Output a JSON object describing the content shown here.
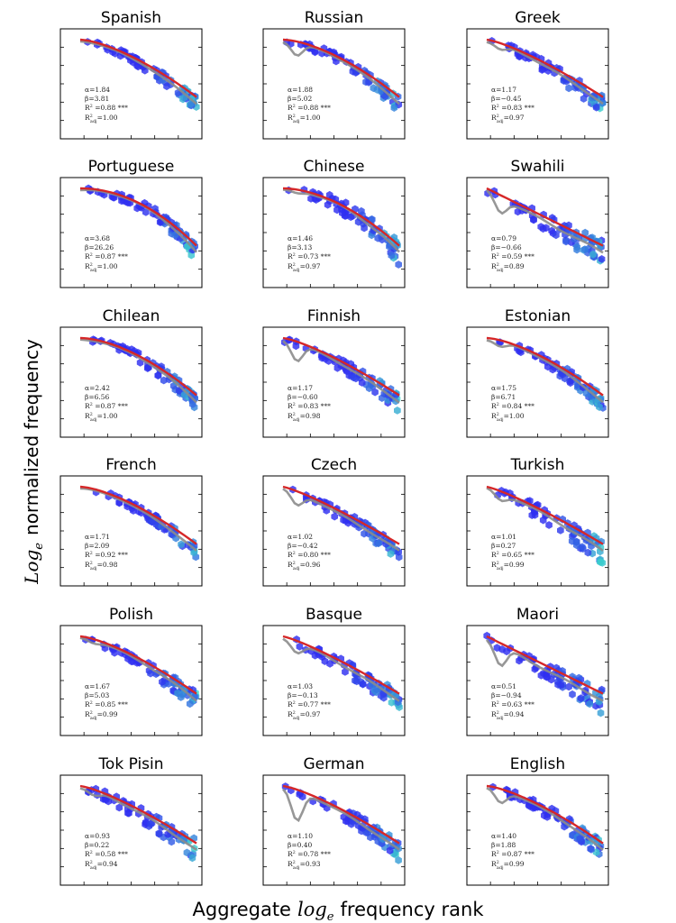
{
  "figure": {
    "ylabel_prefix": "Log",
    "ylabel_sub": "e",
    "ylabel_suffix": "normalized frequency",
    "xlabel_prefix": "Aggregate",
    "xlabel_math": "log",
    "xlabel_sub": "e",
    "xlabel_suffix": "frequency rank"
  },
  "stat_labels": {
    "alpha": "α",
    "beta": "β",
    "r2": "R",
    "r2adj": "R",
    "adj_sub": "adj",
    "sig": "***"
  },
  "colors": {
    "fit": "#d62728",
    "lowess": "#8c8c8c",
    "hex_low": "#2f2ff0",
    "hex_high": "#3de3c8"
  },
  "chart_data": [
    {
      "type": "scatter",
      "title": "Spanish",
      "alpha": "1.84",
      "beta": "3.81",
      "r2": "0.88",
      "r2adj": "1.00",
      "shape": 0.5,
      "dip": 0.0,
      "spread": 0.1
    },
    {
      "type": "scatter",
      "title": "Russian",
      "alpha": "1.88",
      "beta": "5.02",
      "r2": "0.88",
      "r2adj": "1.00",
      "shape": 0.6,
      "dip": 0.5,
      "spread": 0.15
    },
    {
      "type": "scatter",
      "title": "Greek",
      "alpha": "1.17",
      "beta": "−0.45",
      "r2": "0.83",
      "r2adj": "0.97",
      "shape": 0.3,
      "dip": 0.2,
      "spread": 0.2
    },
    {
      "type": "scatter",
      "title": "Portuguese",
      "alpha": "3.68",
      "beta": "26.26",
      "r2": "0.87",
      "r2adj": "1.00",
      "shape": 1.0,
      "dip": 0.0,
      "spread": 0.15
    },
    {
      "type": "scatter",
      "title": "Chinese",
      "alpha": "1.46",
      "beta": "3.13",
      "r2": "0.73",
      "r2adj": "0.97",
      "shape": 0.8,
      "dip": 0.1,
      "spread": 0.3
    },
    {
      "type": "scatter",
      "title": "Swahili",
      "alpha": "0.79",
      "beta": "−0.66",
      "r2": "0.59",
      "r2adj": "0.89",
      "shape": 0.0,
      "dip": 0.6,
      "spread": 0.35
    },
    {
      "type": "scatter",
      "title": "Chilean",
      "alpha": "2.42",
      "beta": "6.56",
      "r2": "0.87",
      "r2adj": "1.00",
      "shape": 0.7,
      "dip": 0.0,
      "spread": 0.15
    },
    {
      "type": "scatter",
      "title": "Finnish",
      "alpha": "1.17",
      "beta": "−0.60",
      "r2": "0.83",
      "r2adj": "0.98",
      "shape": 0.3,
      "dip": 0.7,
      "spread": 0.2
    },
    {
      "type": "scatter",
      "title": "Estonian",
      "alpha": "1.75",
      "beta": "6.71",
      "r2": "0.84",
      "r2adj": "1.00",
      "shape": 0.5,
      "dip": 0.2,
      "spread": 0.15
    },
    {
      "type": "scatter",
      "title": "French",
      "alpha": "1.71",
      "beta": "2.09",
      "r2": "0.92",
      "r2adj": "0.98",
      "shape": 0.5,
      "dip": 0.0,
      "spread": 0.1
    },
    {
      "type": "scatter",
      "title": "Czech",
      "alpha": "1.02",
      "beta": "−0.42",
      "r2": "0.80",
      "r2adj": "0.96",
      "shape": 0.2,
      "dip": 0.5,
      "spread": 0.2
    },
    {
      "type": "scatter",
      "title": "Turkish",
      "alpha": "1.01",
      "beta": "0.27",
      "r2": "0.65",
      "r2adj": "0.99",
      "shape": 0.2,
      "dip": 0.3,
      "spread": 0.35
    },
    {
      "type": "scatter",
      "title": "Polish",
      "alpha": "1.67",
      "beta": "5.03",
      "r2": "0.85",
      "r2adj": "0.99",
      "shape": 0.4,
      "dip": 0.1,
      "spread": 0.2
    },
    {
      "type": "scatter",
      "title": "Basque",
      "alpha": "1.03",
      "beta": "−0.13",
      "r2": "0.77",
      "r2adj": "0.97",
      "shape": 0.2,
      "dip": 0.4,
      "spread": 0.25
    },
    {
      "type": "scatter",
      "title": "Maori",
      "alpha": "0.51",
      "beta": "−0.94",
      "r2": "0.63",
      "r2adj": "0.94",
      "shape": 0.0,
      "dip": 0.8,
      "spread": 0.35
    },
    {
      "type": "scatter",
      "title": "Tok Pisin",
      "alpha": "0.93",
      "beta": "0.22",
      "r2": "0.58",
      "r2adj": "0.94",
      "shape": 0.3,
      "dip": 0.2,
      "spread": 0.3
    },
    {
      "type": "scatter",
      "title": "German",
      "alpha": "1.10",
      "beta": "0.40",
      "r2": "0.78",
      "r2adj": "0.93",
      "shape": 0.3,
      "dip": 1.2,
      "spread": 0.25
    },
    {
      "type": "scatter",
      "title": "English",
      "alpha": "1.40",
      "beta": "1.88",
      "r2": "0.87",
      "r2adj": "0.99",
      "shape": 0.4,
      "dip": 0.5,
      "spread": 0.2
    }
  ]
}
